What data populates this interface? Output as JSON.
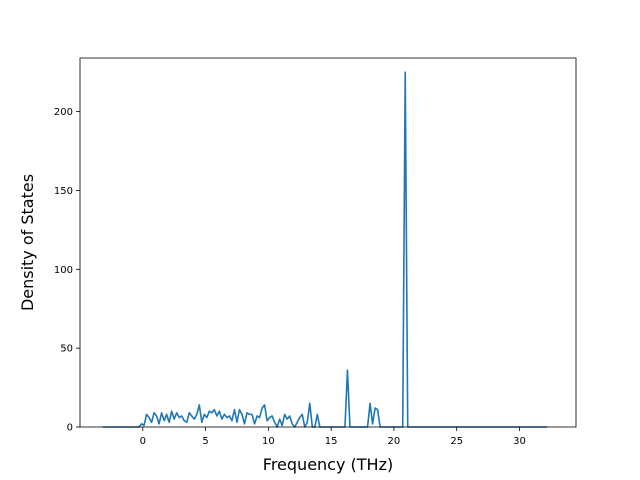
{
  "chart_data": {
    "type": "line",
    "title": "",
    "xlabel": "Frequency (THz)",
    "ylabel": "Density of States",
    "xlim": [
      -5.0,
      34.5
    ],
    "ylim": [
      0,
      234
    ],
    "xticks": [
      0,
      5,
      10,
      15,
      20,
      25,
      30
    ],
    "yticks": [
      0,
      50,
      100,
      150,
      200
    ],
    "grid": false,
    "legend": "none",
    "series": [
      {
        "color": "#1f77b4",
        "x": [
          -3.2,
          -0.3,
          -0.1,
          0.1,
          0.3,
          0.5,
          0.7,
          0.9,
          1.1,
          1.3,
          1.5,
          1.7,
          1.9,
          2.1,
          2.3,
          2.5,
          2.7,
          2.9,
          3.1,
          3.3,
          3.5,
          3.7,
          3.9,
          4.1,
          4.3,
          4.5,
          4.7,
          4.9,
          5.1,
          5.3,
          5.5,
          5.7,
          5.9,
          6.1,
          6.3,
          6.5,
          6.7,
          6.9,
          7.1,
          7.3,
          7.5,
          7.7,
          7.9,
          8.1,
          8.3,
          8.5,
          8.7,
          8.9,
          9.1,
          9.3,
          9.5,
          9.7,
          9.9,
          10.1,
          10.3,
          10.5,
          10.7,
          10.9,
          11.1,
          11.3,
          11.5,
          11.7,
          11.9,
          12.1,
          12.3,
          12.5,
          12.7,
          12.9,
          13.1,
          13.3,
          13.5,
          13.7,
          13.9,
          14.1,
          14.3,
          14.5,
          14.7,
          14.9,
          15.1,
          15.3,
          15.5,
          15.7,
          15.9,
          16.1,
          16.3,
          16.5,
          16.7,
          17.5,
          17.9,
          18.1,
          18.3,
          18.5,
          18.7,
          18.9,
          19.1,
          20.5,
          20.7,
          20.9,
          21.1,
          21.3,
          32.2
        ],
        "y": [
          0,
          0,
          2,
          1,
          8,
          6,
          3,
          9,
          7,
          2,
          9,
          4,
          8,
          3,
          10,
          5,
          9,
          6,
          7,
          4,
          3,
          9,
          7,
          5,
          8,
          14,
          3,
          8,
          6,
          10,
          9,
          11,
          7,
          10,
          5,
          8,
          6,
          7,
          4,
          11,
          3,
          11,
          8,
          2,
          9,
          8,
          8,
          2,
          7,
          6,
          12,
          14,
          4,
          6,
          7,
          3,
          0,
          5,
          1,
          8,
          5,
          7,
          2,
          0,
          3,
          6,
          8,
          0,
          3,
          15,
          0,
          0,
          8,
          0,
          0,
          0,
          0,
          0,
          0,
          0,
          0,
          0,
          0,
          0,
          36,
          0,
          0,
          0,
          0,
          15,
          2,
          12,
          11,
          0,
          0,
          0,
          0,
          225,
          0,
          0,
          0
        ]
      }
    ]
  }
}
